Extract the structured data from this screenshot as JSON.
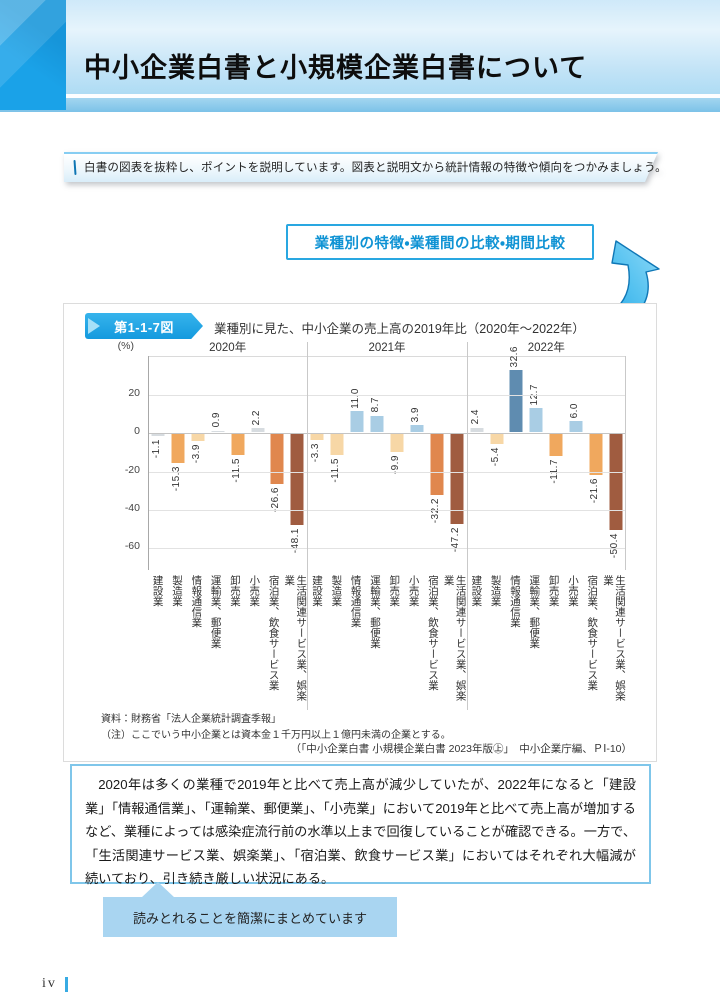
{
  "page": {
    "title": "中小企業白書と小規模企業白書について",
    "note": "白書の図表を抜粋し、ポイントを説明しています。図表と説明文から統計情報の特徴や傾向をつかみましょう。",
    "callout": "業種別の特徴・業種間の比較・期間比較",
    "page_number": "iv"
  },
  "figure": {
    "badge": "第1-1-7図",
    "title": "業種別に見た、中小企業の売上高の2019年比（2020年～2022年）",
    "unit_label": "(%)",
    "source_line1": "資料：財務省「法人企業統計調査季報」",
    "source_line2": "（注）ここでいう中小企業とは資本金１千万円以上１億円未満の企業とする。",
    "citation": "（「中小企業白書 小規模企業白書 2023年版㊤」　中小企業庁編、ＰⅠ-10）"
  },
  "chart_data": {
    "type": "bar",
    "title": "業種別に見た、中小企業の売上高の2019年比（2020年～2022年）",
    "ylabel": "(%)",
    "ylim": [
      -72,
      40
    ],
    "yticks": [
      20,
      0,
      -20,
      -40,
      -60
    ],
    "grid": true,
    "legend": false,
    "categories": [
      "建設業",
      "製造業",
      "情報通信業",
      "運輸業、郵便業",
      "卸売業",
      "小売業",
      "宿泊業、飲食サービス業",
      "生活関連サービス業、娯楽業"
    ],
    "groups": [
      {
        "label": "2020年",
        "values": [
          -1.1,
          -15.3,
          -3.9,
          0.9,
          -11.5,
          2.2,
          -26.6,
          -48.1
        ],
        "colors": [
          "gray",
          "orange",
          "peach",
          "gray",
          "orange",
          "gray",
          "deep_orange",
          "brown"
        ]
      },
      {
        "label": "2021年",
        "values": [
          -3.3,
          -11.5,
          11.0,
          8.7,
          -9.9,
          3.9,
          -32.2,
          -47.2
        ],
        "colors": [
          "peach",
          "peach",
          "light_blue",
          "light_blue",
          "peach",
          "light_blue",
          "deep_orange",
          "brown"
        ]
      },
      {
        "label": "2022年",
        "values": [
          2.4,
          -5.4,
          32.6,
          12.7,
          -11.7,
          6.0,
          -21.6,
          -50.4
        ],
        "colors": [
          "gray",
          "peach",
          "steel_blue",
          "light_blue",
          "orange",
          "light_blue",
          "orange",
          "brown"
        ]
      }
    ],
    "palette": {
      "gray": "#d7dce0",
      "light_blue": "#a9cde4",
      "steel_blue": "#5f8cb0",
      "peach": "#f7d7a6",
      "orange": "#f0a85e",
      "deep_orange": "#e0874e",
      "brown": "#a05c40"
    }
  },
  "summary": {
    "text": "2020年は多くの業種で2019年と比べて売上高が減少していたが、2022年になると「建設業」「情報通信業」、「運輸業、郵便業」、「小売業」において2019年と比べて売上高が増加するなど、業種によっては感染症流行前の水準以上まで回復していることが確認できる。一方で、「生活関連サービス業、娯楽業」、「宿泊業、飲食サービス業」においてはそれぞれ大幅減が続いており、引き続き厳しい状況にある。"
  },
  "bubble": {
    "text": "読みとれることを簡潔にまとめています"
  },
  "accent_colors": {
    "header_blue": "#1aa2e8",
    "callout_blue": "#29a7e1",
    "bubble_blue": "#a9d5f1"
  }
}
